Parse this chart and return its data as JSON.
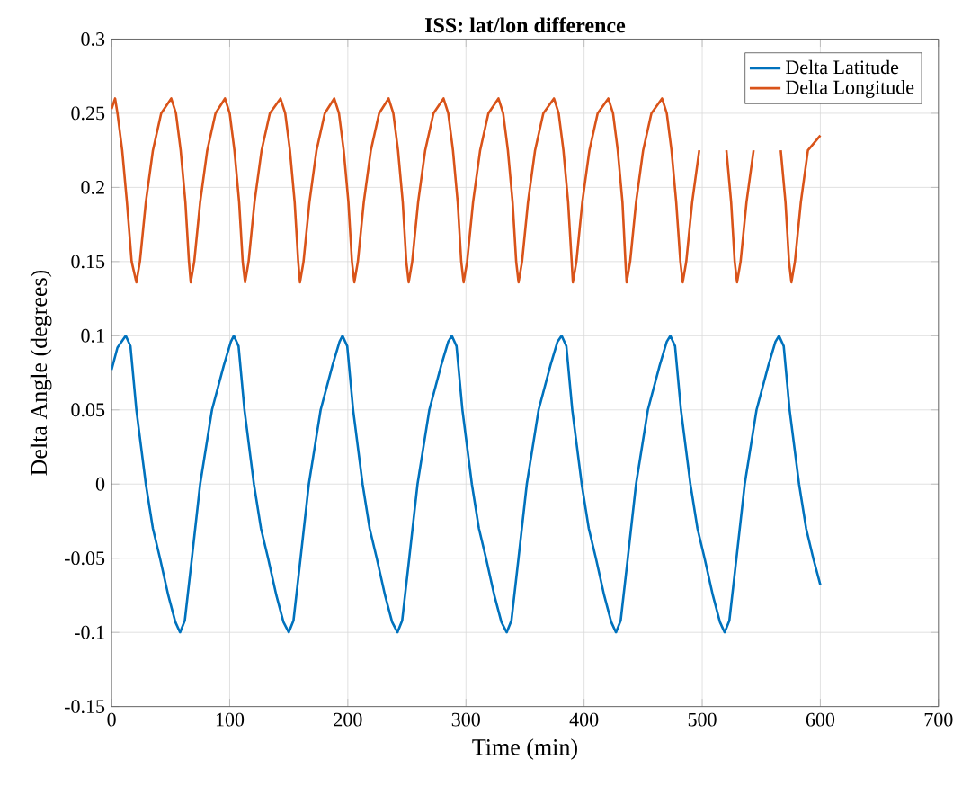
{
  "chart_data": {
    "type": "line",
    "title": "ISS: lat/lon difference",
    "xlabel": "Time (min)",
    "ylabel": "Delta Angle (degrees)",
    "xlim": [
      0,
      700
    ],
    "xticks": [
      0,
      100,
      200,
      300,
      400,
      500,
      600,
      700
    ],
    "ylim": [
      -0.15,
      0.3
    ],
    "yticks": [
      -0.15,
      -0.1,
      -0.05,
      0,
      0.05,
      0.1,
      0.15,
      0.2,
      0.25,
      0.3
    ],
    "grid": true,
    "legend": "top right",
    "marker": "none",
    "line_style": "solid",
    "series": [
      {
        "name": "Delta Latitude",
        "color": "#0072bd",
        "x": [
          0,
          5,
          12,
          16,
          21,
          29,
          35,
          41,
          48,
          54,
          58,
          62,
          68,
          75,
          85,
          95,
          101,
          103.5,
          107.5,
          112.5,
          120.5,
          126.5,
          132.5,
          139.5,
          145.5,
          150,
          154,
          160,
          167,
          177,
          187,
          193,
          195.5,
          199.5,
          204.5,
          212.5,
          218.5,
          224.5,
          231.5,
          237.5,
          242,
          246,
          252,
          259,
          269,
          279,
          285,
          288,
          292,
          297,
          305,
          311,
          317,
          324,
          330,
          334.5,
          338.5,
          344.5,
          351.5,
          361.5,
          371.5,
          377.5,
          381,
          385,
          390,
          398,
          404,
          410,
          417,
          423,
          427,
          431,
          437,
          444,
          454,
          464,
          470,
          473,
          477,
          482,
          490,
          496,
          502,
          509,
          515,
          519,
          523,
          529,
          536,
          546,
          556,
          562,
          565,
          569,
          574,
          582,
          588,
          594,
          600
        ],
        "values": [
          0.077,
          0.092,
          0.1,
          0.093,
          0.05,
          0,
          -0.03,
          -0.05,
          -0.075,
          -0.093,
          -0.1,
          -0.092,
          -0.05,
          0,
          0.05,
          0.08,
          0.096,
          0.1,
          0.093,
          0.05,
          0,
          -0.03,
          -0.05,
          -0.075,
          -0.093,
          -0.1,
          -0.092,
          -0.05,
          0,
          0.05,
          0.08,
          0.096,
          0.1,
          0.093,
          0.05,
          0,
          -0.03,
          -0.05,
          -0.075,
          -0.093,
          -0.1,
          -0.092,
          -0.05,
          0,
          0.05,
          0.08,
          0.096,
          0.1,
          0.093,
          0.05,
          0,
          -0.03,
          -0.05,
          -0.075,
          -0.093,
          -0.1,
          -0.092,
          -0.05,
          0,
          0.05,
          0.08,
          0.096,
          0.1,
          0.093,
          0.05,
          0,
          -0.03,
          -0.05,
          -0.075,
          -0.093,
          -0.1,
          -0.092,
          -0.05,
          0,
          0.05,
          0.08,
          0.096,
          0.1,
          0.093,
          0.05,
          0,
          -0.03,
          -0.05,
          -0.075,
          -0.093,
          -0.1,
          -0.092,
          -0.05,
          0,
          0.05,
          0.08,
          0.096,
          0.1,
          0.093,
          0.05,
          0,
          -0.03,
          -0.05,
          -0.068
        ]
      },
      {
        "name": "Delta Longitude",
        "color": "#d95319",
        "x": [
          0,
          3,
          5,
          9,
          13,
          17,
          21,
          24,
          29,
          35,
          42,
          50.5,
          54.5,
          58.5,
          62.5,
          65.5,
          67,
          70,
          75,
          81,
          88,
          96,
          100,
          104,
          108,
          111,
          113,
          116,
          121,
          127,
          134,
          143,
          147,
          151,
          155,
          158,
          159.5,
          162.5,
          167.5,
          173.5,
          180.5,
          188.5,
          192.5,
          196.5,
          200.5,
          203.5,
          205.5,
          208.5,
          213.5,
          219.5,
          226.5,
          234.5,
          238.5,
          242.5,
          246.5,
          249.5,
          251.5,
          254.5,
          259.5,
          265.5,
          272.5,
          281,
          285,
          289,
          293,
          296,
          298,
          301,
          306,
          312,
          319,
          327.5,
          331.5,
          335.5,
          339.5,
          342.5,
          344.5,
          347.5,
          352.5,
          358.5,
          365.5,
          374.5,
          378.5,
          382.5,
          386.5,
          389.5,
          390.5,
          393.5,
          398.5,
          404.5,
          411.5,
          420.5,
          424.5,
          428.5,
          432.5,
          435,
          436,
          439,
          444,
          450,
          457,
          466,
          470,
          474,
          478,
          481.5,
          483.5,
          486.5,
          491.5,
          497.5,
          504.5,
          512.5,
          516.5,
          520.5,
          524.5,
          527.5,
          529.5,
          532.5,
          537.5,
          543.5,
          550.5,
          558.5,
          562.5,
          566.5,
          570.5,
          573.5,
          575.5,
          578.5,
          583.5,
          589.5,
          600
        ],
        "values": [
          0.253,
          0.26,
          0.25,
          0.225,
          0.19,
          0.15,
          0.136,
          0.15,
          0.19,
          0.225,
          0.25,
          0.26,
          0.25,
          0.225,
          0.19,
          0.15,
          0.136,
          0.15,
          0.19,
          0.225,
          0.25,
          0.26,
          0.25,
          0.225,
          0.19,
          0.15,
          0.136,
          0.15,
          0.19,
          0.225,
          0.25,
          0.26,
          0.25,
          0.225,
          0.19,
          0.15,
          0.136,
          0.15,
          0.19,
          0.225,
          0.25,
          0.26,
          0.25,
          0.225,
          0.19,
          0.15,
          0.136,
          0.15,
          0.19,
          0.225,
          0.25,
          0.26,
          0.25,
          0.225,
          0.19,
          0.15,
          0.136,
          0.15,
          0.19,
          0.225,
          0.25,
          0.26,
          0.25,
          0.225,
          0.19,
          0.15,
          0.136,
          0.15,
          0.19,
          0.225,
          0.25,
          0.26,
          0.25,
          0.225,
          0.19,
          0.15,
          0.136,
          0.15,
          0.19,
          0.225,
          0.25,
          0.26,
          0.25,
          0.225,
          0.19,
          0.15,
          0.136,
          0.15,
          0.19,
          0.225,
          0.25,
          0.26,
          0.25,
          0.225,
          0.19,
          0.15,
          0.136,
          0.15,
          0.19,
          0.225,
          0.25,
          0.26,
          0.25,
          0.225,
          0.19,
          0.15,
          0.136,
          0.15,
          0.19,
          0.225,
          null,
          null,
          null,
          0.225,
          0.19,
          0.15,
          0.136,
          0.15,
          0.19,
          0.225,
          null,
          null,
          null,
          0.225,
          0.19,
          0.15,
          0.136,
          0.15,
          0.19,
          0.225,
          0.235
        ]
      }
    ]
  }
}
